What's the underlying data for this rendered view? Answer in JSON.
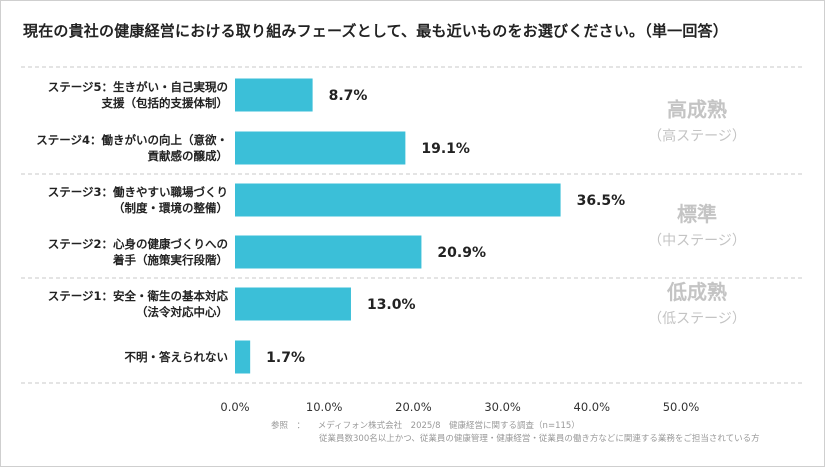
{
  "title": "現在の貴社の健康経営における取り組みフェーズとして、最も近いものをお選びください。（単一回答）",
  "chart_data": {
    "type": "bar",
    "orientation": "horizontal",
    "title": "現在の貴社の健康経営における取り組みフェーズとして、最も近いものをお選びください。（単一回答）",
    "categories": [
      [
        "ステージ5：生きがい・自己実現の",
        "支援（包括的支援体制）"
      ],
      [
        "ステージ4：働きがいの向上（意欲・",
        "貢献感の醸成）"
      ],
      [
        "ステージ3：働きやすい職場づくり",
        "（制度・環境の整備）"
      ],
      [
        "ステージ2：心身の健康づくりへの",
        "着手（施策実行段階）"
      ],
      [
        "ステージ1：安全・衛生の基本対応",
        "（法令対応中心）"
      ],
      [
        "不明・答えられない"
      ]
    ],
    "values": [
      8.7,
      19.1,
      36.5,
      20.9,
      13.0,
      1.7
    ],
    "value_labels": [
      "8.7%",
      "19.1%",
      "36.5%",
      "20.9%",
      "13.0%",
      "1.7%"
    ],
    "xlim": [
      0,
      50
    ],
    "xticks": [
      "0.0%",
      "10.0%",
      "20.0%",
      "30.0%",
      "40.0%",
      "50.0%"
    ],
    "bar_color": "#3bbfd8",
    "grid": false,
    "legend": "none",
    "groups": [
      {
        "main": "高成熟",
        "sub": "（高ステージ）",
        "rows": [
          0,
          1
        ]
      },
      {
        "main": "標準",
        "sub": "（中ステージ）",
        "rows": [
          2,
          3
        ]
      },
      {
        "main": "低成熟",
        "sub": "（低ステージ）",
        "rows": [
          4
        ]
      }
    ],
    "group_label_color": "#c4c4c4",
    "divider_color": "#c8c8c8"
  },
  "source": {
    "line1": "参照　：　　メディフォン株式会社　2025/8　健康経営に関する調査（n=115）",
    "line2": "従業員数300名以上かつ、従業員の健康管理・健康経営・従業員の働き方などに関連する業務をご担当されている方"
  }
}
